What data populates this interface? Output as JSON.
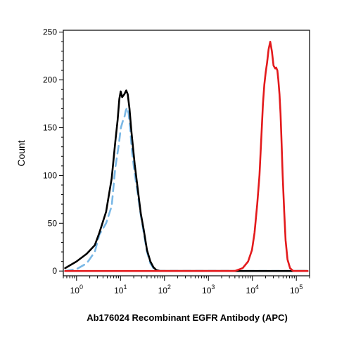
{
  "chart_data": {
    "type": "line",
    "xlabel": "Ab176024 Recombinant EGFR Antibody (APC)",
    "ylabel": "Count",
    "x_scale": "log",
    "xlim": [
      0.5,
      200000
    ],
    "ylim": [
      -5,
      252
    ],
    "grid": false,
    "x_ticks": [
      {
        "value": 1,
        "base": "10",
        "exp": "0"
      },
      {
        "value": 10,
        "base": "10",
        "exp": "1"
      },
      {
        "value": 100,
        "base": "10",
        "exp": "2"
      },
      {
        "value": 1000,
        "base": "10",
        "exp": "3"
      },
      {
        "value": 10000,
        "base": "10",
        "exp": "4"
      },
      {
        "value": 100000,
        "base": "10",
        "exp": "5"
      }
    ],
    "y_ticks": [
      0,
      50,
      100,
      150,
      200,
      250
    ],
    "series": [
      {
        "color": "#7ab8e6",
        "dash": "11,7",
        "x": [
          0.55,
          1.0,
          1.7,
          2.6,
          3.3,
          4.7,
          6.3,
          7.6,
          9.0,
          10.2,
          11.3,
          12.4,
          13.2,
          14.1,
          15.3,
          16.5,
          18.3,
          21.0,
          24.8,
          29.0,
          33.8,
          40.0,
          47.8,
          56.0,
          65.0,
          80.0,
          100.0,
          130.0,
          200.0,
          500.0,
          3000.0,
          20000.0,
          100000.0,
          180000.0
        ],
        "y": [
          0,
          2,
          8,
          20,
          38,
          50,
          68,
          108,
          130,
          150,
          157,
          162,
          168,
          171,
          165,
          150,
          125,
          102,
          80,
          58,
          40,
          20,
          8,
          3,
          1,
          0,
          0,
          0,
          0,
          0,
          0,
          0,
          0,
          0
        ]
      },
      {
        "color": "#000000",
        "dash": "",
        "x": [
          0.55,
          1.0,
          1.7,
          2.6,
          3.3,
          4.7,
          6.3,
          7.6,
          8.6,
          9.4,
          10.1,
          10.9,
          12.2,
          13.5,
          14.6,
          16.0,
          17.8,
          21.0,
          24.8,
          29.0,
          33.8,
          40.0,
          47.8,
          56.0,
          65.0,
          80.0,
          100.0,
          130.0,
          200.0,
          500.0,
          3000.0,
          20000.0,
          100000.0,
          180000.0
        ],
        "y": [
          3,
          10,
          18,
          27,
          40,
          62,
          97,
          135,
          158,
          180,
          188,
          182,
          185,
          189,
          185,
          170,
          145,
          112,
          85,
          60,
          43,
          22,
          10,
          4,
          1,
          0,
          0,
          0,
          0,
          0,
          0,
          0,
          0,
          0
        ]
      },
      {
        "color": "#e31a1c",
        "dash": "",
        "x": [
          0.55,
          100.0,
          1000.0,
          4000.0,
          6000.0,
          8000.0,
          9800.0,
          11200.0,
          12900.0,
          14500.0,
          16000.0,
          17400.0,
          18700.0,
          20100.0,
          21600.0,
          23400.0,
          25500.0,
          27800.0,
          30300.0,
          33100.0,
          34700.0,
          37000.0,
          39000.0,
          41400.0,
          43700.0,
          45700.0,
          48900.0,
          53000.0,
          57000.0,
          63000.0,
          72000.0,
          85000.0,
          100000.0,
          180000.0
        ],
        "y": [
          0,
          0,
          0,
          0,
          3,
          10,
          22,
          40,
          70,
          100,
          140,
          175,
          195,
          208,
          218,
          232,
          240,
          230,
          215,
          212,
          213,
          210,
          200,
          185,
          165,
          140,
          100,
          62,
          32,
          12,
          3,
          0,
          0,
          0
        ]
      }
    ]
  }
}
